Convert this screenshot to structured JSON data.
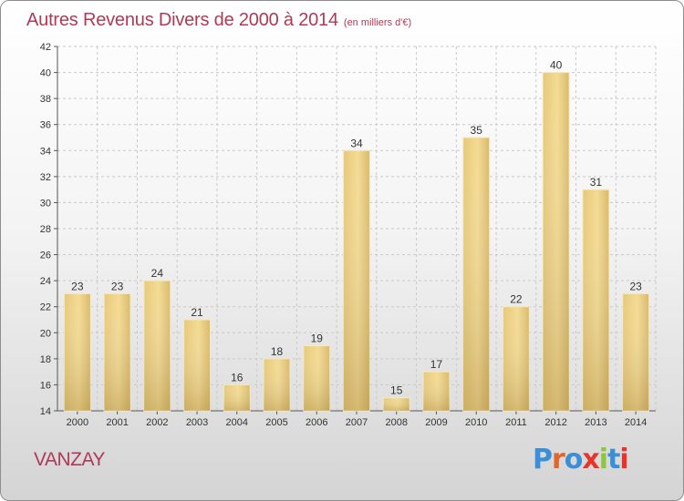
{
  "header": {
    "title": "Autres Revenus Divers de 2000 à 2014",
    "unit": "(en milliers d'€)"
  },
  "footer": {
    "place": "VANZAY",
    "brand": "Proxiti",
    "brand_colors": [
      "#3a8fd6",
      "#e0662a",
      "#3a8fd6",
      "#e8342a",
      "#8cc63f",
      "#3a8fd6",
      "#e8342a"
    ]
  },
  "colors": {
    "accent": "#b03a56",
    "bar_light": "#f3d990",
    "bar_dark": "#c4a559",
    "grid": "#c9c9c9"
  },
  "chart_data": {
    "type": "bar",
    "title": "Autres Revenus Divers de 2000 à 2014",
    "subtitle": "(en milliers d'€)",
    "xlabel": "",
    "ylabel": "",
    "categories": [
      "2000",
      "2001",
      "2002",
      "2003",
      "2004",
      "2005",
      "2006",
      "2007",
      "2008",
      "2009",
      "2010",
      "2011",
      "2012",
      "2013",
      "2014"
    ],
    "values": [
      23,
      23,
      24,
      21,
      16,
      18,
      19,
      34,
      15,
      17,
      35,
      22,
      40,
      31,
      23
    ],
    "ylim": [
      14,
      42
    ],
    "yticks": [
      14,
      16,
      18,
      20,
      22,
      24,
      26,
      28,
      30,
      32,
      34,
      36,
      38,
      40,
      42
    ],
    "grid": true,
    "data_labels": true
  }
}
